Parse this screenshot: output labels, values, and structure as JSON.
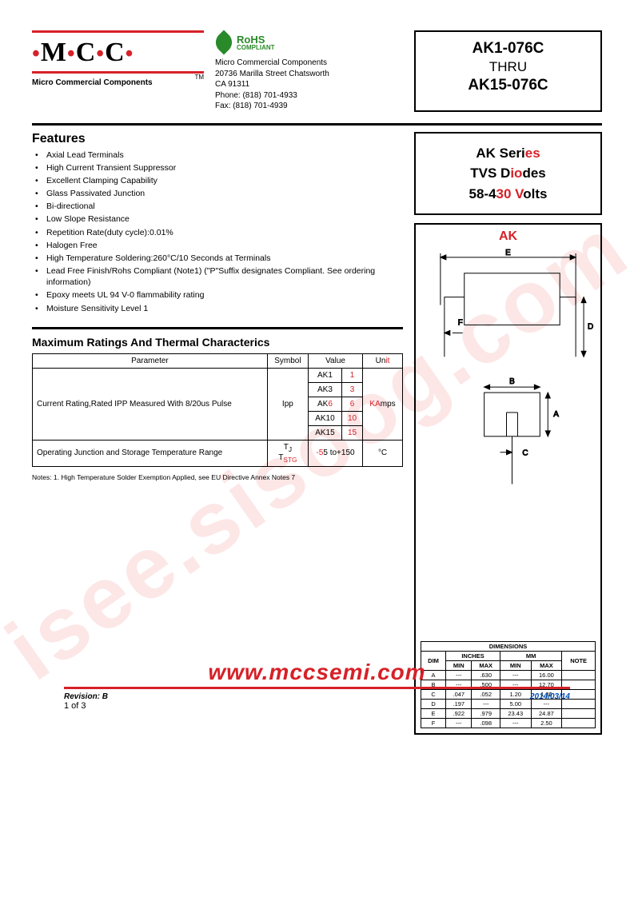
{
  "watermark": "isee.sisoog.com",
  "logo": {
    "text": "M C C",
    "subtitle": "Micro Commercial Components",
    "tm": "TM"
  },
  "rohs": {
    "label": "RoHS",
    "sub": "COMPLIANT"
  },
  "company": {
    "name": "Micro Commercial Components",
    "addr1": "20736 Marilla Street Chatsworth",
    "addr2": "CA 91311",
    "phone": "Phone: (818) 701-4933",
    "fax": "Fax:      (818) 701-4939"
  },
  "parts": {
    "from": "AK1-076C",
    "thru": "THRU",
    "to": "AK15-076C"
  },
  "series": {
    "l1": "AK Series",
    "l2": "TVS Diodes",
    "l3": "58-430 Volts"
  },
  "drawing_label": "AK",
  "features_title": "Features",
  "features": [
    "Axial Lead Terminals",
    "High Current Transient Suppressor",
    "Excellent Clamping Capability",
    "Glass Passivated Junction",
    "Bi-directional",
    "Low Slope Resistance",
    "Repetition Rate(duty cycle):0.01%",
    "Halogen Free",
    "High Temperature Soldering:260°C/10 Seconds at Terminals",
    "Lead Free Finish/Rohs Compliant (Note1) (\"P\"Suffix designates Compliant.  See ordering information)",
    "Epoxy meets UL 94 V-0 flammability rating",
    "Moisture Sensitivity Level 1"
  ],
  "ratings_title": "Maximum Ratings And Thermal Characterics",
  "ratings": {
    "headers": [
      "Parameter",
      "Symbol",
      "Value",
      "Unit"
    ],
    "row1_param": "Current Rating,Rated IPP Measured With 8/20us Pulse",
    "row1_sym": "Ipp",
    "row1_vals": [
      [
        "AK1",
        "1"
      ],
      [
        "AK3",
        "3"
      ],
      [
        "AK6",
        "6"
      ],
      [
        "AK10",
        "10"
      ],
      [
        "AK15",
        "15"
      ]
    ],
    "row1_unit": "KAmps",
    "row2_param": "Operating Junction and Storage Temperature Range",
    "row2_sym": "TJ\nTSTG",
    "row2_val": "-55 to+150",
    "row2_unit": "°C"
  },
  "notes": "Notes:     1.   High Temperature Solder Exemption Applied, see EU Directive Annex Notes  7",
  "dimensions": {
    "title": "DIMENSIONS",
    "unit_headers": [
      "INCHES",
      "MM"
    ],
    "sub_headers": [
      "DIM",
      "MIN",
      "MAX",
      "MIN",
      "MAX",
      "NOTE"
    ],
    "rows": [
      [
        "A",
        "---",
        ".630",
        "---",
        "16.00",
        ""
      ],
      [
        "B",
        "---",
        ".500",
        "---",
        "12.70",
        ""
      ],
      [
        "C",
        ".047",
        ".052",
        "1.20",
        "1.32",
        ""
      ],
      [
        "D",
        ".197",
        "---",
        "5.00",
        "---",
        ""
      ],
      [
        "E",
        ".922",
        ".979",
        "23.43",
        "24.87",
        ""
      ],
      [
        "F",
        "---",
        ".098",
        "---",
        "2.50",
        ""
      ]
    ]
  },
  "dim_letters": {
    "A": "A",
    "B": "B",
    "C": "C",
    "D": "D",
    "E": "E",
    "F": "F"
  },
  "footer": {
    "url": "www.mccsemi.com",
    "rev_label": "Revision:",
    "rev_val": " B",
    "page": "1 of 3",
    "date": "2014/03/14"
  },
  "colors": {
    "accent": "#d62128",
    "green": "#2a8a2a",
    "blue": "#0050b0"
  }
}
